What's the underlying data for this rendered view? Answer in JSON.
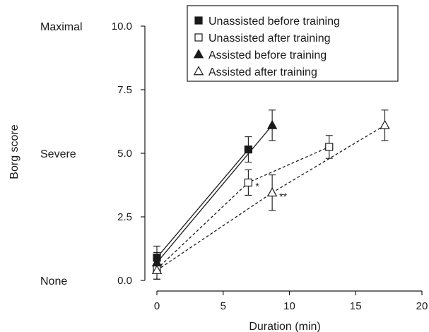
{
  "chart_data": {
    "type": "line",
    "xlabel": "Duration (min)",
    "ylabel": "Borg score",
    "xlim": [
      0,
      20
    ],
    "ylim": [
      0,
      10
    ],
    "x_ticks": [
      "0",
      "5",
      "10",
      "15",
      "20"
    ],
    "y_ticks": [
      "0.0",
      "2.5",
      "5.0",
      "7.5",
      "10.0"
    ],
    "y_level_labels": [
      {
        "y": 10,
        "label": "Maximal"
      },
      {
        "y": 5,
        "label": "Severe"
      },
      {
        "y": 0,
        "label": "None"
      }
    ],
    "grid": false,
    "legend_position": "top-right",
    "series": [
      {
        "name": "Unassisted before training",
        "marker": "square",
        "filled": true,
        "dash": "solid",
        "points": [
          {
            "x": 0,
            "y": 0.9,
            "err": 0.45
          },
          {
            "x": 6.9,
            "y": 5.15,
            "err": 0.5
          }
        ]
      },
      {
        "name": "Unassisted after training",
        "marker": "square",
        "filled": false,
        "dash": "dashed",
        "points": [
          {
            "x": 0,
            "y": 0.45,
            "err": 0.4
          },
          {
            "x": 6.9,
            "y": 3.85,
            "err": 0.5
          },
          {
            "x": 13,
            "y": 5.25,
            "err": 0.45
          }
        ]
      },
      {
        "name": "Assisted before training",
        "marker": "triangle",
        "filled": true,
        "dash": "solid",
        "points": [
          {
            "x": 0,
            "y": 0.7,
            "err": 0.4
          },
          {
            "x": 8.7,
            "y": 6.1,
            "err": 0.6
          }
        ]
      },
      {
        "name": "Assisted after training",
        "marker": "triangle",
        "filled": false,
        "dash": "dashed",
        "points": [
          {
            "x": 0,
            "y": 0.4,
            "err": 0.35
          },
          {
            "x": 8.7,
            "y": 3.45,
            "err": 0.7
          },
          {
            "x": 17.2,
            "y": 6.1,
            "err": 0.6
          }
        ]
      }
    ],
    "annotations": [
      {
        "x": 6.9,
        "y": 3.85,
        "text": "*"
      },
      {
        "x": 8.7,
        "y": 3.45,
        "text": "**"
      }
    ]
  }
}
